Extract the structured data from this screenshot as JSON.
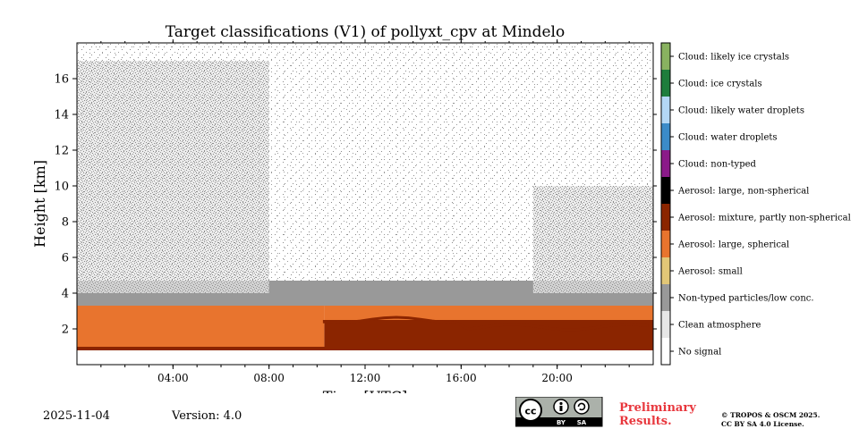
{
  "chart_data": {
    "type": "heatmap",
    "title": "Target classifications (V1) of pollyxt_cpv at Mindelo",
    "xlabel": "Time [UTC]",
    "ylabel": "Height [km]",
    "xlim": [
      0,
      24
    ],
    "ylim": [
      0,
      18
    ],
    "x_ticks": [
      {
        "value": 4,
        "label": "04:00"
      },
      {
        "value": 8,
        "label": "08:00"
      },
      {
        "value": 12,
        "label": "12:00"
      },
      {
        "value": 16,
        "label": "16:00"
      },
      {
        "value": 20,
        "label": "20:00"
      }
    ],
    "y_ticks": [
      {
        "value": 2,
        "label": "2"
      },
      {
        "value": 4,
        "label": "4"
      },
      {
        "value": 6,
        "label": "6"
      },
      {
        "value": 8,
        "label": "8"
      },
      {
        "value": 10,
        "label": "10"
      },
      {
        "value": 12,
        "label": "12"
      },
      {
        "value": 14,
        "label": "14"
      },
      {
        "value": 16,
        "label": "16"
      }
    ],
    "classes": [
      {
        "code": 0,
        "label": "No signal",
        "color": "#ffffff"
      },
      {
        "code": 1,
        "label": "Clean atmosphere",
        "color": "#e6e6e6"
      },
      {
        "code": 2,
        "label": "Non-typed particles/low conc.",
        "color": "#999999"
      },
      {
        "code": 3,
        "label": "Aerosol: small",
        "color": "#e2c777"
      },
      {
        "code": 4,
        "label": "Aerosol: large, spherical",
        "color": "#e8742e"
      },
      {
        "code": 5,
        "label": "Aerosol: mixture, partly non-spherical",
        "color": "#8b2500"
      },
      {
        "code": 6,
        "label": "Aerosol: large, non-spherical",
        "color": "#000000"
      },
      {
        "code": 7,
        "label": "Cloud: non-typed",
        "color": "#8b1a89"
      },
      {
        "code": 8,
        "label": "Cloud: water droplets",
        "color": "#3b8bc8"
      },
      {
        "code": 9,
        "label": "Cloud: likely water droplets",
        "color": "#b3d7f5"
      },
      {
        "code": 10,
        "label": "Cloud: ice crystals",
        "color": "#1e7d3c"
      },
      {
        "code": 11,
        "label": "Cloud: likely ice crystals",
        "color": "#89b260"
      }
    ],
    "layers": [
      {
        "class": "Aerosol: mixture, partly non-spherical",
        "time_range": [
          0,
          24
        ],
        "height_range": [
          0.8,
          1.0
        ]
      },
      {
        "class": "Aerosol: mixture, partly non-spherical",
        "time_range": [
          10.3,
          24
        ],
        "height_range": [
          0.8,
          2.5
        ]
      },
      {
        "class": "Aerosol: large, spherical",
        "time_range": [
          0,
          10.3
        ],
        "height_range": [
          1.0,
          3.8
        ]
      },
      {
        "class": "Aerosol: large, spherical",
        "time_range": [
          10.3,
          24
        ],
        "height_range": [
          2.5,
          3.3
        ]
      },
      {
        "class": "Non-typed particles/low conc.",
        "time_range": [
          0,
          24
        ],
        "height_range": [
          3.3,
          4.7
        ]
      },
      {
        "class": "Non-typed particles/low conc.",
        "time_range": [
          0,
          24
        ],
        "height_range": [
          4.7,
          18
        ],
        "note": "sparse, denser before 05:00 and after 19:00"
      },
      {
        "class": "Clean atmosphere",
        "time_range": [
          0,
          8
        ],
        "height_range": [
          4.0,
          17
        ]
      },
      {
        "class": "Clean atmosphere",
        "time_range": [
          19,
          24
        ],
        "height_range": [
          4.0,
          10
        ]
      }
    ]
  },
  "footer": {
    "date": "2025-11-04",
    "version": "Version: 4.0",
    "preliminary_line1": "Preliminary",
    "preliminary_line2": "Results.",
    "license_line1": "© TROPOS & OSCM 2025.",
    "license_line2": "CC BY SA 4.0 License.",
    "badge_cc": "cc",
    "badge_by": "BY",
    "badge_sa": "SA"
  }
}
